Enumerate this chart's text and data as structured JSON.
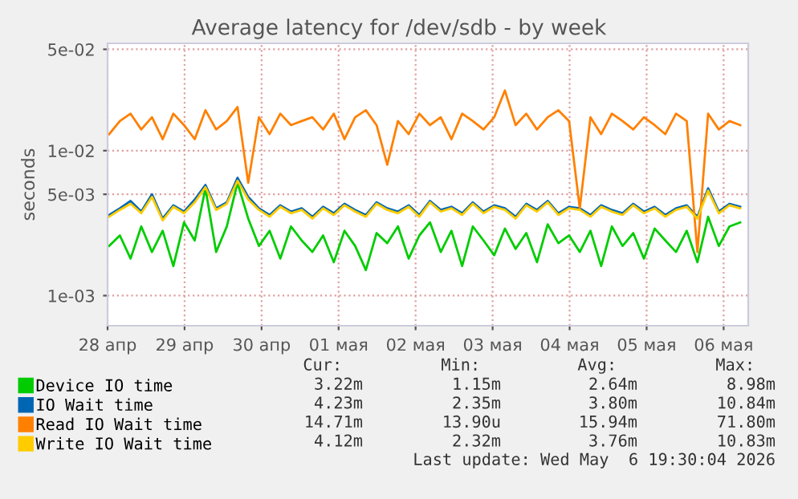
{
  "chart_data": {
    "type": "line",
    "title": "Average latency for /dev/sdb - by week",
    "ylabel": "seconds",
    "log": "y",
    "grid": true,
    "legend": "bottom",
    "ylim": [
      0.00062,
      0.055
    ],
    "yticks": [
      {
        "value": 0.05,
        "label": "5e-02"
      },
      {
        "value": 0.01,
        "label": "1e-02"
      },
      {
        "value": 0.005,
        "label": "5e-03"
      },
      {
        "value": 0.001,
        "label": "1e-03"
      }
    ],
    "xlim": [
      "2026-04-28T12:00",
      "2026-05-06T19:40"
    ],
    "xticks": [
      {
        "value": "2026-04-28T12:00",
        "label": "28 апр"
      },
      {
        "value": "2026-04-29T12:00",
        "label": "29 апр"
      },
      {
        "value": "2026-04-30T12:00",
        "label": "30 апр"
      },
      {
        "value": "2026-05-01T12:00",
        "label": "01 мая"
      },
      {
        "value": "2026-05-02T12:00",
        "label": "02 мая"
      },
      {
        "value": "2026-05-03T12:00",
        "label": "03 мая"
      },
      {
        "value": "2026-05-04T12:00",
        "label": "04 мая"
      },
      {
        "value": "2026-05-05T12:00",
        "label": "05 мая"
      },
      {
        "value": "2026-05-06T12:00",
        "label": "06 мая"
      }
    ],
    "x": [
      "2026-04-28T12:30",
      "2026-04-28T15:50",
      "2026-04-28T19:10",
      "2026-04-28T22:30",
      "2026-04-29T01:50",
      "2026-04-29T05:10",
      "2026-04-29T08:30",
      "2026-04-29T11:50",
      "2026-04-29T15:10",
      "2026-04-29T18:30",
      "2026-04-29T21:50",
      "2026-04-30T01:10",
      "2026-04-30T04:30",
      "2026-04-30T07:50",
      "2026-04-30T11:10",
      "2026-04-30T14:30",
      "2026-04-30T17:50",
      "2026-04-30T21:10",
      "2026-05-01T00:30",
      "2026-05-01T03:50",
      "2026-05-01T07:10",
      "2026-05-01T10:30",
      "2026-05-01T13:50",
      "2026-05-01T17:10",
      "2026-05-01T20:30",
      "2026-05-01T23:50",
      "2026-05-02T03:10",
      "2026-05-02T06:30",
      "2026-05-02T09:50",
      "2026-05-02T13:10",
      "2026-05-02T16:30",
      "2026-05-02T19:50",
      "2026-05-02T23:10",
      "2026-05-03T02:30",
      "2026-05-03T05:50",
      "2026-05-03T09:10",
      "2026-05-03T12:30",
      "2026-05-03T15:50",
      "2026-05-03T19:10",
      "2026-05-03T22:30",
      "2026-05-04T01:50",
      "2026-05-04T05:10",
      "2026-05-04T08:30",
      "2026-05-04T11:50",
      "2026-05-04T15:10",
      "2026-05-04T18:30",
      "2026-05-04T21:50",
      "2026-05-05T01:10",
      "2026-05-05T04:30",
      "2026-05-05T07:50",
      "2026-05-05T11:10",
      "2026-05-05T14:30",
      "2026-05-05T17:50",
      "2026-05-05T21:10",
      "2026-05-06T00:30",
      "2026-05-06T03:50",
      "2026-05-06T07:10",
      "2026-05-06T10:30",
      "2026-05-06T13:50",
      "2026-05-06T17:10"
    ],
    "series": [
      {
        "name": "Device IO time",
        "color": "#00cc00",
        "values": [
          0.0022,
          0.0026,
          0.0018,
          0.003,
          0.002,
          0.0028,
          0.0016,
          0.0032,
          0.0024,
          0.0055,
          0.002,
          0.003,
          0.006,
          0.0034,
          0.0022,
          0.0028,
          0.0018,
          0.003,
          0.0024,
          0.002,
          0.0026,
          0.0017,
          0.0028,
          0.0022,
          0.0015,
          0.0027,
          0.0023,
          0.003,
          0.0018,
          0.0026,
          0.0032,
          0.002,
          0.0028,
          0.0016,
          0.003,
          0.0024,
          0.0019,
          0.0029,
          0.0021,
          0.0027,
          0.0017,
          0.0031,
          0.0023,
          0.0026,
          0.002,
          0.0028,
          0.0016,
          0.003,
          0.0022,
          0.0027,
          0.0018,
          0.0029,
          0.0024,
          0.002,
          0.0028,
          0.0017,
          0.0035,
          0.0022,
          0.003,
          0.0032
        ]
      },
      {
        "name": "IO Wait time",
        "color": "#0066b3",
        "values": [
          0.0036,
          0.004,
          0.0045,
          0.0038,
          0.005,
          0.0034,
          0.0042,
          0.0038,
          0.0046,
          0.0058,
          0.004,
          0.0044,
          0.0065,
          0.0048,
          0.004,
          0.0036,
          0.0042,
          0.0038,
          0.004,
          0.0035,
          0.0041,
          0.0037,
          0.0043,
          0.0039,
          0.0036,
          0.0044,
          0.004,
          0.0038,
          0.0042,
          0.0036,
          0.0045,
          0.0039,
          0.0041,
          0.0037,
          0.0044,
          0.0038,
          0.0042,
          0.004,
          0.0035,
          0.0043,
          0.0039,
          0.0045,
          0.0037,
          0.0041,
          0.004,
          0.0036,
          0.0042,
          0.0039,
          0.0037,
          0.0043,
          0.0038,
          0.0041,
          0.0036,
          0.004,
          0.0042,
          0.0035,
          0.0055,
          0.0038,
          0.0043,
          0.0041
        ]
      },
      {
        "name": "Read IO Wait time",
        "color": "#ff8000",
        "values": [
          0.013,
          0.016,
          0.018,
          0.014,
          0.017,
          0.012,
          0.018,
          0.015,
          0.012,
          0.019,
          0.014,
          0.016,
          0.02,
          0.006,
          0.017,
          0.013,
          0.018,
          0.015,
          0.016,
          0.017,
          0.014,
          0.018,
          0.012,
          0.017,
          0.019,
          0.015,
          0.008,
          0.016,
          0.013,
          0.018,
          0.015,
          0.017,
          0.012,
          0.018,
          0.016,
          0.014,
          0.017,
          0.026,
          0.015,
          0.018,
          0.014,
          0.017,
          0.019,
          0.016,
          0.004,
          0.017,
          0.013,
          0.018,
          0.016,
          0.014,
          0.017,
          0.015,
          0.013,
          0.018,
          0.016,
          0.002,
          0.018,
          0.014,
          0.016,
          0.015
        ]
      },
      {
        "name": "Write IO Wait time",
        "color": "#ffcc00",
        "values": [
          0.0035,
          0.0039,
          0.0043,
          0.0037,
          0.0048,
          0.0033,
          0.0041,
          0.0037,
          0.0044,
          0.0056,
          0.0039,
          0.0043,
          0.0062,
          0.0046,
          0.0039,
          0.0035,
          0.0041,
          0.0037,
          0.0039,
          0.0034,
          0.004,
          0.0036,
          0.0042,
          0.0038,
          0.0035,
          0.0043,
          0.0039,
          0.0037,
          0.0041,
          0.0035,
          0.0044,
          0.0038,
          0.004,
          0.0036,
          0.0043,
          0.0037,
          0.0041,
          0.0039,
          0.0034,
          0.0042,
          0.0038,
          0.0044,
          0.0036,
          0.004,
          0.0039,
          0.0035,
          0.0041,
          0.0038,
          0.0036,
          0.0042,
          0.0037,
          0.004,
          0.0035,
          0.0039,
          0.0041,
          0.0034,
          0.0053,
          0.0037,
          0.0042,
          0.004
        ]
      }
    ],
    "annotations": [
      "Cur:",
      "Min:",
      "Avg:",
      "Max:",
      "3.22m",
      "1.15m",
      "2.64m",
      "8.98m",
      "4.23m",
      "2.35m",
      "3.80m",
      "10.84m",
      "14.71m",
      "13.90u",
      "15.94m",
      "71.80m",
      "4.12m",
      "2.32m",
      "3.76m",
      "10.83m",
      "Last update: Wed May  6 19:30:04 2026"
    ]
  }
}
